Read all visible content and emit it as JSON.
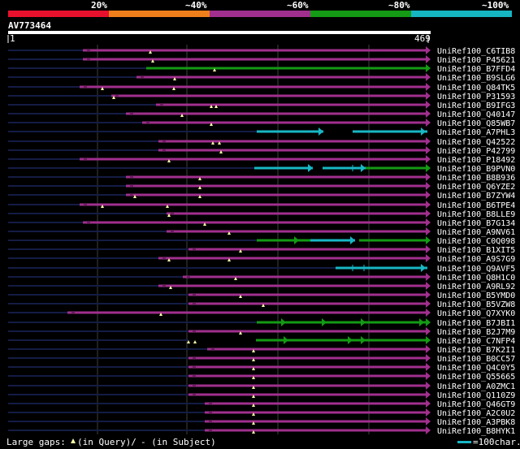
{
  "identity_scale": {
    "labels": [
      "20%",
      "~40%",
      "~60%",
      "~80%",
      "~100%"
    ],
    "colors": [
      "#e8112d",
      "#ef7f1a",
      "#a12f8e",
      "#149a14",
      "#16b5c2"
    ]
  },
  "query": {
    "name": "AV773464",
    "start": "1",
    "end": "469"
  },
  "colors": {
    "magenta": "#a12f8e",
    "green": "#149a14",
    "cyan": "#18b7c5",
    "dark": "#141c44",
    "gridline": "#404040"
  },
  "hits": [
    {
      "name": "UniRef100_C6TIB8",
      "color": "magenta"
    },
    {
      "name": "UniRef100_P45621",
      "color": "magenta"
    },
    {
      "name": "UniRef100_B7FFD4",
      "color": "green"
    },
    {
      "name": "UniRef100_B9SLG6",
      "color": "magenta"
    },
    {
      "name": "UniRef100_Q84TK5",
      "color": "magenta"
    },
    {
      "name": "UniRef100_P31593",
      "color": "magenta"
    },
    {
      "name": "UniRef100_B9IFG3",
      "color": "magenta"
    },
    {
      "name": "UniRef100_Q40147",
      "color": "magenta"
    },
    {
      "name": "UniRef100_Q85WB7",
      "color": "magenta"
    },
    {
      "name": "UniRef100_A7PHL3",
      "color": "cyan"
    },
    {
      "name": "UniRef100_Q42522",
      "color": "magenta"
    },
    {
      "name": "UniRef100_P42799",
      "color": "magenta"
    },
    {
      "name": "UniRef100_P18492",
      "color": "magenta"
    },
    {
      "name": "UniRef100_B9PVN0",
      "color": "cyan"
    },
    {
      "name": "UniRef100_B8B936",
      "color": "magenta"
    },
    {
      "name": "UniRef100_Q6YZE2",
      "color": "magenta"
    },
    {
      "name": "UniRef100_B7ZYW4",
      "color": "magenta"
    },
    {
      "name": "UniRef100_B6TPE4",
      "color": "magenta"
    },
    {
      "name": "UniRef100_B8LLE9",
      "color": "magenta"
    },
    {
      "name": "UniRef100_B7G134",
      "color": "magenta"
    },
    {
      "name": "UniRef100_A9NV61",
      "color": "magenta"
    },
    {
      "name": "UniRef100_C0Q098",
      "color": "green"
    },
    {
      "name": "UniRef100_B1XIT5",
      "color": "magenta"
    },
    {
      "name": "UniRef100_A9S7G9",
      "color": "magenta"
    },
    {
      "name": "UniRef100_Q9AVF5",
      "color": "cyan"
    },
    {
      "name": "UniRef100_Q8H1C0",
      "color": "magenta"
    },
    {
      "name": "UniRef100_A9RL92",
      "color": "magenta"
    },
    {
      "name": "UniRef100_B5YMD0",
      "color": "magenta"
    },
    {
      "name": "UniRef100_B5VZW8",
      "color": "magenta"
    },
    {
      "name": "UniRef100_Q7XYK0",
      "color": "magenta"
    },
    {
      "name": "UniRef100_B7JBI1",
      "color": "green"
    },
    {
      "name": "UniRef100_B2J7M9",
      "color": "magenta"
    },
    {
      "name": "UniRef100_C7NFP4",
      "color": "green"
    },
    {
      "name": "UniRef100_B7K2I1",
      "color": "magenta"
    },
    {
      "name": "UniRef100_B0CC57",
      "color": "magenta"
    },
    {
      "name": "UniRef100_Q4C0Y5",
      "color": "magenta"
    },
    {
      "name": "UniRef100_Q55665",
      "color": "magenta"
    },
    {
      "name": "UniRef100_A0ZMC1",
      "color": "magenta"
    },
    {
      "name": "UniRef100_Q110Z9",
      "color": "magenta"
    },
    {
      "name": "UniRef100_Q46GT9",
      "color": "magenta"
    },
    {
      "name": "UniRef100_A2C0U2",
      "color": "magenta"
    },
    {
      "name": "UniRef100_A3PBK8",
      "color": "magenta"
    },
    {
      "name": "UniRef100_B8HYK1",
      "color": "magenta"
    }
  ],
  "footer": {
    "gaps_prefix": "Large gaps:",
    "gaps_query": "(in Query)/",
    "gaps_subject": "- (in Subject)",
    "scale_label": "=100char."
  }
}
